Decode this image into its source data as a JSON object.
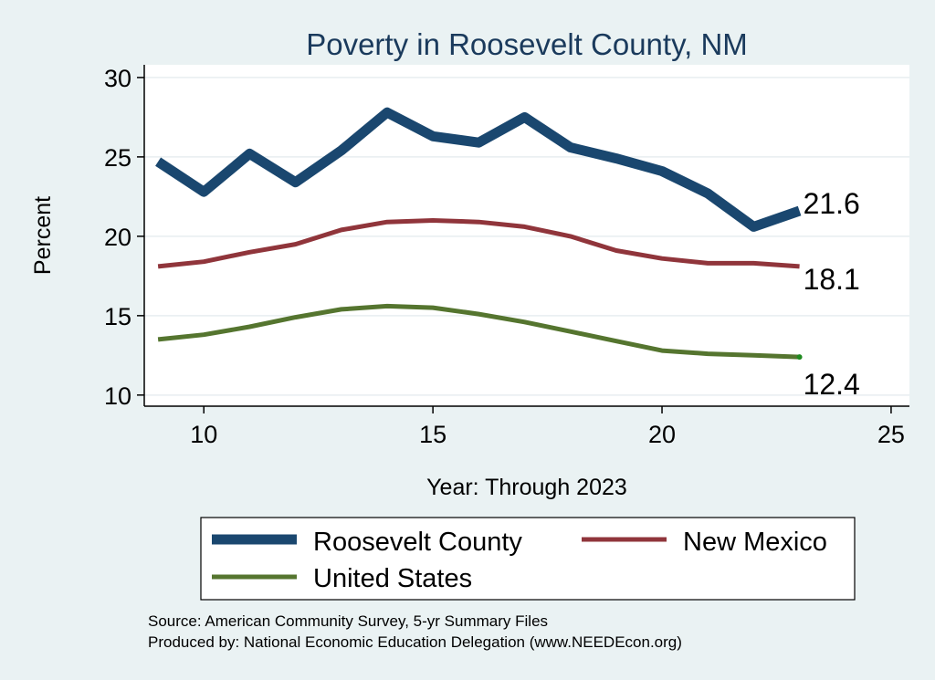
{
  "chart_data": {
    "type": "line",
    "title": "Poverty in Roosevelt County, NM",
    "xlabel": "Year: Through 2023",
    "ylabel": "Percent",
    "xlim": [
      8.7,
      25.4
    ],
    "ylim": [
      9.3,
      30.8
    ],
    "xticks": [
      10,
      15,
      20,
      25
    ],
    "yticks": [
      10,
      15,
      20,
      25,
      30
    ],
    "grid": true,
    "legend_position": "bottom",
    "x": [
      9,
      10,
      11,
      12,
      13,
      14,
      15,
      16,
      17,
      18,
      19,
      20,
      21,
      22,
      23
    ],
    "series": [
      {
        "name": "Roosevelt County",
        "color": "#1a476f",
        "values": [
          24.7,
          22.8,
          25.2,
          23.4,
          25.4,
          27.8,
          26.3,
          25.9,
          27.5,
          25.6,
          24.9,
          24.1,
          22.7,
          20.6,
          21.6
        ],
        "end_label": "21.6"
      },
      {
        "name": "New Mexico",
        "color": "#90353b",
        "values": [
          18.1,
          18.4,
          19.0,
          19.5,
          20.4,
          20.9,
          21.0,
          20.9,
          20.6,
          20.0,
          19.1,
          18.6,
          18.3,
          18.3,
          18.1
        ],
        "end_label": "18.1"
      },
      {
        "name": "United States",
        "color": "#55752f",
        "values": [
          13.5,
          13.8,
          14.3,
          14.9,
          15.4,
          15.6,
          15.5,
          15.1,
          14.6,
          14.0,
          13.4,
          12.8,
          12.6,
          12.5,
          12.4
        ],
        "end_label": "12.4"
      }
    ],
    "source_note": "Source: American Community Survey, 5-yr Summary Files",
    "produced_note": "Produced by: National Economic Education Delegation (www.NEEDEcon.org)"
  }
}
